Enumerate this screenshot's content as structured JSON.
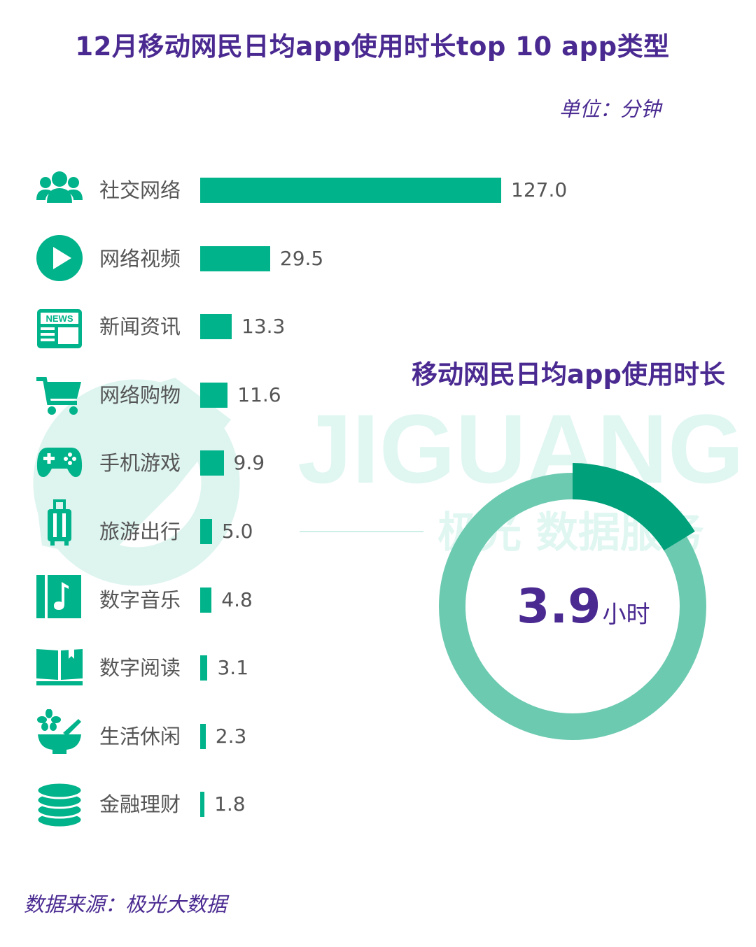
{
  "title": "12月移动网民日均app使用时长top 10 app类型",
  "unit": "单位：分钟",
  "watermark": {
    "brand": "JIGUANG",
    "sub": "极光 数据服务"
  },
  "colors": {
    "bar": "#00b38a",
    "title": "#4a2a91",
    "ring": "#6ccab0",
    "ring_highlight": "#00a07a"
  },
  "icons": [
    "users-icon",
    "play-icon",
    "news-icon",
    "cart-icon",
    "gamepad-icon",
    "luggage-icon",
    "music-icon",
    "book-icon",
    "mortar-icon",
    "coins-icon"
  ],
  "donut": {
    "title": "移动网民日均app使用时长",
    "value": "3.9",
    "unit": "小时"
  },
  "chart_data": {
    "type": "bar",
    "orientation": "horizontal",
    "categories": [
      "社交网络",
      "网络视频",
      "新闻资讯",
      "网络购物",
      "手机游戏",
      "旅游出行",
      "数字音乐",
      "数字阅读",
      "生活休闲",
      "金融理财"
    ],
    "values": [
      127.0,
      29.5,
      13.3,
      11.6,
      9.9,
      5.0,
      4.8,
      3.1,
      2.3,
      1.8
    ],
    "value_labels": [
      "127.0",
      "29.5",
      "13.3",
      "11.6",
      "9.9",
      "5.0",
      "4.8",
      "3.1",
      "2.3",
      "1.8"
    ],
    "title": "12月移动网民日均app使用时长top 10 app类型",
    "xlabel": "",
    "ylabel": ""
  },
  "source": "数据来源：极光大数据"
}
